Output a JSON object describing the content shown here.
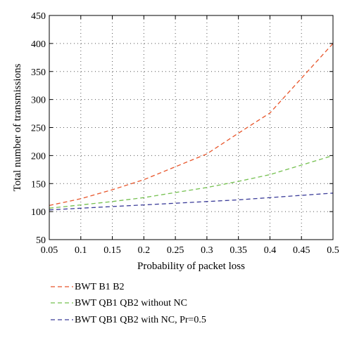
{
  "chart_data": {
    "type": "line",
    "xlabel": "Probability of packet loss",
    "ylabel": "Total number of transmissions",
    "xlim": [
      0.05,
      0.5
    ],
    "ylim": [
      50,
      450
    ],
    "x_ticks": [
      "0.05",
      "0.1",
      "0.15",
      "0.2",
      "0.25",
      "0.3",
      "0.35",
      "0.4",
      "0.45",
      "0.5"
    ],
    "y_ticks": [
      "50",
      "100",
      "150",
      "200",
      "250",
      "300",
      "350",
      "400",
      "450"
    ],
    "grid": true,
    "legend_position": "bottom-left",
    "x": [
      0.05,
      0.1,
      0.15,
      0.2,
      0.25,
      0.3,
      0.35,
      0.4,
      0.45,
      0.5
    ],
    "series": [
      {
        "name": "BWT B1 B2",
        "color": "#e8552a",
        "values": [
          111,
          123,
          139,
          157,
          180,
          203,
          240,
          276,
          338,
          400
        ]
      },
      {
        "name": "BWT QB1 QB2 without NC",
        "color": "#74c04f",
        "values": [
          106,
          112,
          118,
          125,
          134,
          143,
          154,
          166,
          183,
          200
        ]
      },
      {
        "name": "BWT QB1 QB2 with NC, Pr=0.5",
        "color": "#3b3c99",
        "values": [
          103,
          106,
          109,
          112,
          115,
          118,
          121,
          125,
          129,
          133
        ]
      }
    ]
  }
}
